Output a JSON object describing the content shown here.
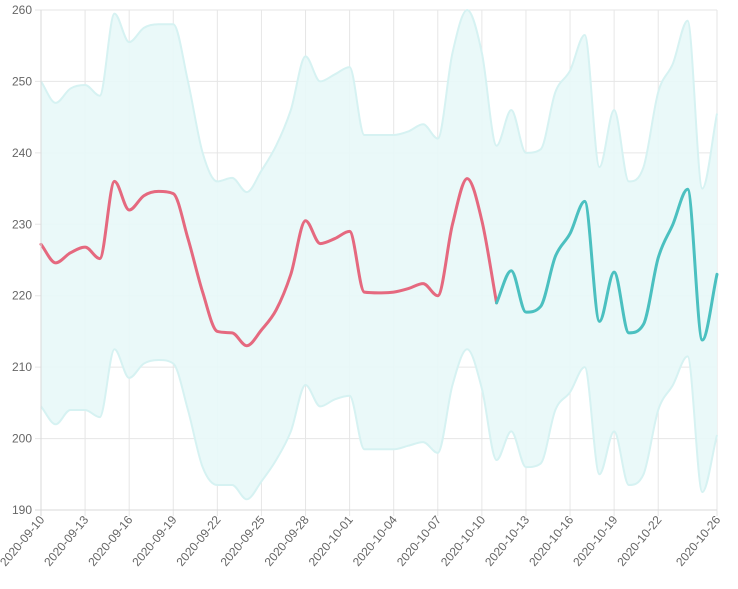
{
  "chart_data": {
    "type": "line",
    "title": "",
    "xlabel": "",
    "ylabel": "",
    "ylim": [
      190,
      260
    ],
    "yticks": [
      190,
      200,
      210,
      220,
      230,
      240,
      250,
      260
    ],
    "x_range": [
      "2020-09-10",
      "2020-10-26"
    ],
    "xtick_labels": [
      "2020-09-10",
      "2020-09-13",
      "2020-09-16",
      "2020-09-19",
      "2020-09-22",
      "2020-09-25",
      "2020-09-28",
      "2020-10-01",
      "2020-10-04",
      "2020-10-07",
      "2020-10-10",
      "2020-10-13",
      "2020-10-16",
      "2020-10-19",
      "2020-10-22",
      "2020-10-26"
    ],
    "grid": true,
    "legend": "none",
    "band": {
      "color": "#e8f8f8",
      "x": [
        "2020-09-10",
        "2020-09-11",
        "2020-09-12",
        "2020-09-13",
        "2020-09-14",
        "2020-09-15",
        "2020-09-16",
        "2020-09-17",
        "2020-09-18",
        "2020-09-19",
        "2020-09-20",
        "2020-09-21",
        "2020-09-22",
        "2020-09-23",
        "2020-09-24",
        "2020-09-25",
        "2020-09-26",
        "2020-09-27",
        "2020-09-28",
        "2020-09-29",
        "2020-09-30",
        "2020-10-01",
        "2020-10-02",
        "2020-10-03",
        "2020-10-04",
        "2020-10-05",
        "2020-10-06",
        "2020-10-07",
        "2020-10-08",
        "2020-10-09",
        "2020-10-10",
        "2020-10-11",
        "2020-10-12",
        "2020-10-13",
        "2020-10-14",
        "2020-10-15",
        "2020-10-16",
        "2020-10-17",
        "2020-10-18",
        "2020-10-19",
        "2020-10-20",
        "2020-10-21",
        "2020-10-22",
        "2020-10-23",
        "2020-10-24",
        "2020-10-25",
        "2020-10-26"
      ],
      "upper": [
        250,
        247,
        249,
        249.5,
        248,
        259.5,
        255.5,
        257.5,
        258,
        258,
        250,
        240,
        236,
        236.5,
        234.5,
        237.5,
        241,
        246,
        253.5,
        250,
        251,
        252,
        242.5,
        242.5,
        242.5,
        243,
        244,
        242,
        254,
        260,
        254,
        241,
        246,
        240,
        240.5,
        248.5,
        251.5,
        256.5,
        238,
        246,
        236,
        238,
        248.5,
        252.5,
        258.5,
        235,
        245.5
      ],
      "lower": [
        204.5,
        202,
        204,
        204,
        203,
        212.5,
        208.5,
        210.5,
        211,
        210.5,
        204,
        196,
        193.5,
        193.5,
        191.5,
        194,
        197,
        201,
        207.5,
        204.5,
        205.5,
        206,
        198.5,
        198.5,
        198.5,
        199,
        199.5,
        198,
        207.5,
        212.5,
        207,
        197,
        201,
        196,
        196.5,
        204,
        206.5,
        210,
        195,
        201,
        193.5,
        195,
        204,
        207.5,
        211.5,
        192.5,
        200.5
      ]
    },
    "series": [
      {
        "color": "#e5697f",
        "x": [
          "2020-09-10",
          "2020-09-11",
          "2020-09-12",
          "2020-09-13",
          "2020-09-14",
          "2020-09-15",
          "2020-09-16",
          "2020-09-17",
          "2020-09-18",
          "2020-09-19",
          "2020-09-20",
          "2020-09-21",
          "2020-09-22",
          "2020-09-23",
          "2020-09-24",
          "2020-09-25",
          "2020-09-26",
          "2020-09-27",
          "2020-09-28",
          "2020-09-29",
          "2020-09-30",
          "2020-10-01",
          "2020-10-02",
          "2020-10-03",
          "2020-10-04",
          "2020-10-05",
          "2020-10-06",
          "2020-10-07",
          "2020-10-08",
          "2020-10-09",
          "2020-10-10",
          "2020-10-11"
        ],
        "values": [
          227.2,
          224.6,
          226,
          226.8,
          225.2,
          236,
          232,
          234,
          234.6,
          234.3,
          228,
          220.5,
          215,
          214.8,
          213,
          215.2,
          218,
          223,
          230.5,
          227.3,
          228,
          229,
          220.5,
          220.4,
          220.5,
          221,
          221.7,
          220,
          230,
          236.4,
          230.5,
          219
        ]
      },
      {
        "color": "#4bc0c0",
        "x": [
          "2020-10-11",
          "2020-10-12",
          "2020-10-13",
          "2020-10-14",
          "2020-10-15",
          "2020-10-16",
          "2020-10-17",
          "2020-10-18",
          "2020-10-19",
          "2020-10-20",
          "2020-10-21",
          "2020-10-22",
          "2020-10-23",
          "2020-10-24",
          "2020-10-25",
          "2020-10-26"
        ],
        "values": [
          219,
          223.5,
          217.7,
          218.5,
          225.5,
          228.7,
          233.2,
          216.4,
          223.3,
          214.8,
          216,
          225.3,
          230,
          234.9,
          213.8,
          223
        ]
      }
    ]
  }
}
